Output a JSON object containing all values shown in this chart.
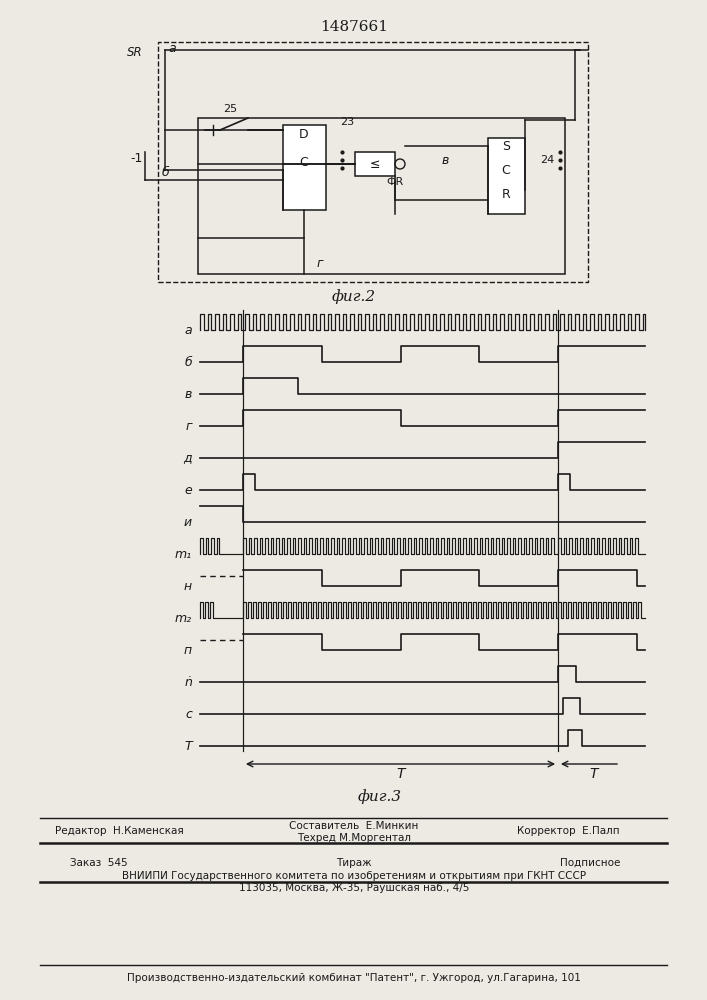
{
  "title": "1487661",
  "fig2_label": "фиг.2",
  "fig3_label": "фиг.3",
  "bg_color": "#ede9e3",
  "line_color": "#1a1a1a",
  "footer": {
    "editor": "Редактор  Н.Каменская",
    "composer": "Составитель  Е.Минкин",
    "techred": "Техред М.Моргентал",
    "corrector": "Корректор  Е.Палп",
    "order": "Заказ  545",
    "tirazh": "Тираж",
    "podpisnoe": "Подписное",
    "vniipи": "ВНИИПИ Государственного комитета по изобретениям и открытиям при ГКНТ СССР",
    "address": "113035, Москва, Ж-35, Раушская наб., 4/5",
    "kombinate": "Производственно-издательский комбинат \"Патент\", г. Ужгород, ул.Гагарина, 101"
  }
}
